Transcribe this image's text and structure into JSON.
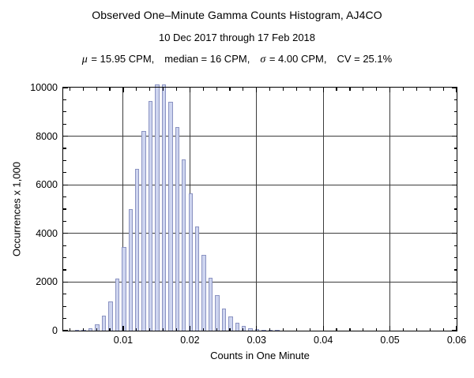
{
  "header": {
    "title": "Observed One–Minute Gamma Counts Histogram, AJ4CO",
    "subtitle": "10 Dec 2017 through 17 Feb 2018",
    "stats": {
      "mu_symbol": "μ",
      "mu_text": " = 15.95 CPM,",
      "median_text": "median = 16 CPM,",
      "sigma_symbol": "σ",
      "sigma_text": " = 4.00 CPM,",
      "cv_text": "CV = 25.1%"
    }
  },
  "chart_data": {
    "type": "bar",
    "title": "Observed One–Minute Gamma Counts Histogram, AJ4CO",
    "subtitle": "10 Dec 2017 through 17 Feb 2018",
    "annotation": "μ = 15.95 CPM,  median = 16 CPM,  σ = 4.00 CPM,  CV = 25.1%",
    "xlabel": "Counts in One Minute",
    "ylabel": "Occurrences x 1,000",
    "xlim": [
      0.001,
      0.06
    ],
    "ylim": [
      0,
      10000
    ],
    "grid": true,
    "legend": "none",
    "x_major_ticks": [
      0.01,
      0.02,
      0.03,
      0.04,
      0.05,
      0.06
    ],
    "x_tick_labels": [
      "0.01",
      "0.02",
      "0.03",
      "0.04",
      "0.05",
      "0.06"
    ],
    "x_minor_step": 0.002,
    "y_major_ticks": [
      0,
      2000,
      4000,
      6000,
      8000,
      10000
    ],
    "y_tick_labels": [
      "0",
      "2000",
      "4000",
      "6000",
      "8000",
      "10000"
    ],
    "y_minor_step": 500,
    "bars": [
      {
        "cpm": 3,
        "x": 0.003,
        "occurrences": 10
      },
      {
        "cpm": 4,
        "x": 0.004,
        "occurrences": 35
      },
      {
        "cpm": 5,
        "x": 0.005,
        "occurrences": 100
      },
      {
        "cpm": 6,
        "x": 0.006,
        "occurrences": 265
      },
      {
        "cpm": 7,
        "x": 0.007,
        "occurrences": 605
      },
      {
        "cpm": 8,
        "x": 0.008,
        "occurrences": 1210
      },
      {
        "cpm": 9,
        "x": 0.009,
        "occurrences": 2150
      },
      {
        "cpm": 10,
        "x": 0.01,
        "occurrences": 3440
      },
      {
        "cpm": 11,
        "x": 0.011,
        "occurrences": 5000
      },
      {
        "cpm": 12,
        "x": 0.012,
        "occurrences": 6665
      },
      {
        "cpm": 13,
        "x": 0.013,
        "occurrences": 8205
      },
      {
        "cpm": 14,
        "x": 0.014,
        "occurrences": 9440
      },
      {
        "cpm": 15,
        "x": 0.015,
        "occurrences": 10140
      },
      {
        "cpm": 16,
        "x": 0.016,
        "occurrences": 10130
      },
      {
        "cpm": 17,
        "x": 0.017,
        "occurrences": 9415
      },
      {
        "cpm": 18,
        "x": 0.018,
        "occurrences": 8365
      },
      {
        "cpm": 19,
        "x": 0.019,
        "occurrences": 7045
      },
      {
        "cpm": 20,
        "x": 0.02,
        "occurrences": 5635
      },
      {
        "cpm": 21,
        "x": 0.021,
        "occurrences": 4295
      },
      {
        "cpm": 22,
        "x": 0.022,
        "occurrences": 3125
      },
      {
        "cpm": 23,
        "x": 0.023,
        "occurrences": 2175
      },
      {
        "cpm": 24,
        "x": 0.024,
        "occurrences": 1450
      },
      {
        "cpm": 25,
        "x": 0.025,
        "occurrences": 925
      },
      {
        "cpm": 26,
        "x": 0.026,
        "occurrences": 570
      },
      {
        "cpm": 27,
        "x": 0.027,
        "occurrences": 340
      },
      {
        "cpm": 28,
        "x": 0.028,
        "occurrences": 195
      },
      {
        "cpm": 29,
        "x": 0.029,
        "occurrences": 105
      },
      {
        "cpm": 30,
        "x": 0.03,
        "occurrences": 55
      },
      {
        "cpm": 31,
        "x": 0.031,
        "occurrences": 30
      },
      {
        "cpm": 32,
        "x": 0.032,
        "occurrences": 15
      },
      {
        "cpm": 33,
        "x": 0.033,
        "occurrences": 8
      }
    ],
    "colors": {
      "bar_fill": "#cdd4ef",
      "bar_edge": "#8b93c2",
      "grid": "#3c3c3c",
      "frame": "#000000",
      "text": "#000000",
      "background": "#ffffff"
    }
  }
}
